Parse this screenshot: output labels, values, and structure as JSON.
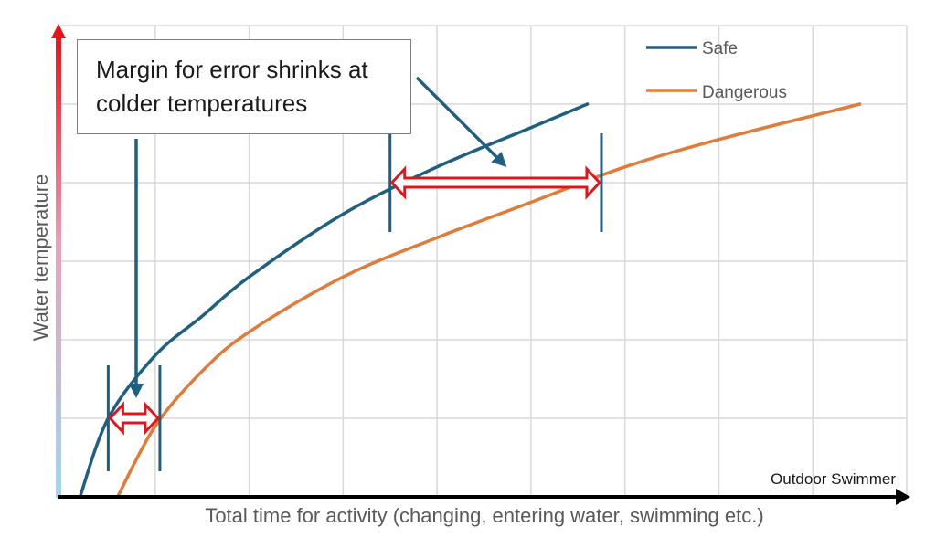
{
  "chart_data": {
    "type": "line",
    "title": "",
    "xlabel": "Total time for activity (changing, entering water, swimming etc.)",
    "ylabel": "Water temperature",
    "xlim": [
      0,
      9
    ],
    "ylim": [
      0,
      6
    ],
    "grid": true,
    "axis_ticks_labeled": false,
    "legend_position": "top-right",
    "series": [
      {
        "name": "Safe",
        "color": "#1f5f7f",
        "x": [
          0.2,
          0.5,
          1.0,
          1.5,
          2.0,
          3.0,
          4.0,
          5.0,
          5.6
        ],
        "y": [
          0.0,
          1.0,
          1.8,
          2.3,
          2.8,
          3.6,
          4.2,
          4.7,
          5.0
        ]
      },
      {
        "name": "Dangerous",
        "color": "#e07b39",
        "x": [
          0.6,
          1.0,
          1.5,
          2.0,
          3.0,
          4.0,
          5.0,
          6.0,
          7.0,
          8.5
        ],
        "y": [
          0.0,
          0.9,
          1.6,
          2.1,
          2.8,
          3.3,
          3.75,
          4.2,
          4.55,
          5.0
        ]
      }
    ],
    "margins": [
      {
        "level": 1.0,
        "x_start": 0.5,
        "x_end": 1.05
      },
      {
        "level": 4.0,
        "x_start": 3.5,
        "x_end": 5.75
      }
    ]
  },
  "annotation": {
    "text_line1": "Margin for error shrinks at",
    "text_line2": "colder temperatures"
  },
  "credit": "Outdoor Swimmer",
  "colors": {
    "safe": "#1f5f7f",
    "dangerous": "#e07b39",
    "margin_arrow": "#e0161b",
    "grid": "#d9d9d9",
    "axis": "#000000",
    "temp_cold": "#9fd8f0",
    "temp_hot": "#e8121b"
  }
}
